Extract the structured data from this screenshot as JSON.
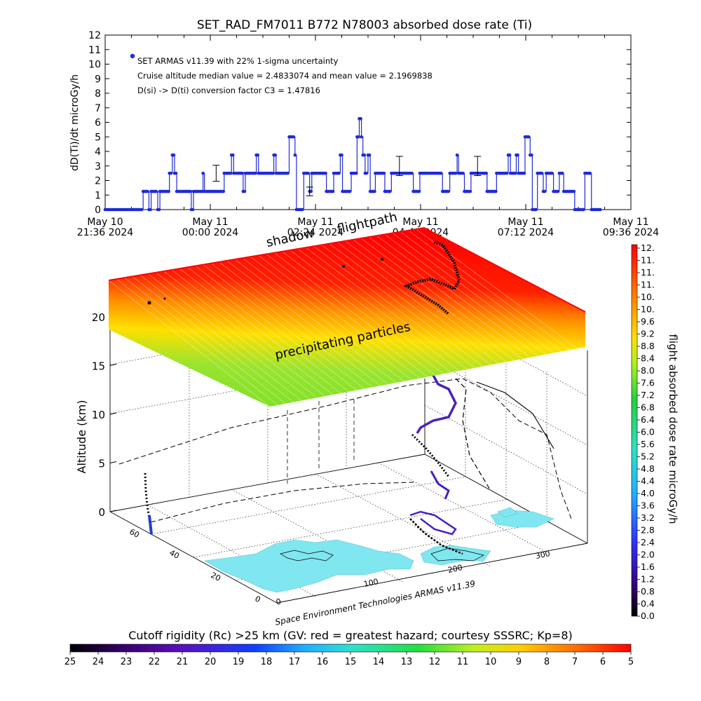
{
  "chart_data": [
    {
      "type": "scatter",
      "title": "SET_RAD_FM7011   B772 N78003 absorbed dose rate (Ti)",
      "ylabel": "dD(Ti)/dt microGy/h",
      "ylim": [
        0,
        12
      ],
      "yticks": [
        "0",
        "1",
        "2",
        "3",
        "4",
        "5",
        "6",
        "7",
        "8",
        "9",
        "10",
        "11",
        "12"
      ],
      "xlim": [
        0,
        720
      ],
      "xticks": [
        {
          "t": 0,
          "line1": "May 10",
          "line2": "21:36 2024"
        },
        {
          "t": 144,
          "line1": "May 11",
          "line2": "00:00 2024"
        },
        {
          "t": 288,
          "line1": "May 11",
          "line2": "02:24 2024"
        },
        {
          "t": 432,
          "line1": "May 11",
          "line2": "04:48 2024"
        },
        {
          "t": 576,
          "line1": "May 11",
          "line2": "07:12 2024"
        },
        {
          "t": 720,
          "line1": "May 11",
          "line2": "09:36 2024"
        }
      ],
      "legend": [
        "SET ARMAS v11.39 with 22% 1-sigma uncertainty",
        "Cruise altitude median value = 2.4833074 and mean value = 2.1969838",
        "D(si) -> D(ti) conversion factor C3 = 1.47816"
      ],
      "color": "#1f2bd6",
      "step_points": [
        [
          0,
          0
        ],
        [
          50,
          0
        ],
        [
          52,
          1.25
        ],
        [
          58,
          1.25
        ],
        [
          60,
          0
        ],
        [
          63,
          1.25
        ],
        [
          70,
          1.25
        ],
        [
          72,
          0
        ],
        [
          75,
          1.25
        ],
        [
          85,
          1.25
        ],
        [
          88,
          2.5
        ],
        [
          92,
          3.75
        ],
        [
          95,
          2.5
        ],
        [
          98,
          1.25
        ],
        [
          115,
          1.25
        ],
        [
          118,
          0
        ],
        [
          121,
          1.25
        ],
        [
          131,
          1.25
        ],
        [
          134,
          2.5
        ],
        [
          136,
          1.25
        ],
        [
          160,
          1.25
        ],
        [
          163,
          2.5
        ],
        [
          170,
          2.5
        ],
        [
          173,
          3.75
        ],
        [
          176,
          2.5
        ],
        [
          186,
          2.5
        ],
        [
          189,
          1.25
        ],
        [
          192,
          2.5
        ],
        [
          204,
          2.5
        ],
        [
          207,
          3.75
        ],
        [
          210,
          2.5
        ],
        [
          228,
          2.5
        ],
        [
          231,
          3.75
        ],
        [
          234,
          2.5
        ],
        [
          250,
          2.5
        ],
        [
          252,
          5
        ],
        [
          258,
          5
        ],
        [
          260,
          3.75
        ],
        [
          262,
          0
        ],
        [
          270,
          0
        ],
        [
          272,
          2.5
        ],
        [
          278,
          2.5
        ],
        [
          280,
          1.25
        ],
        [
          283,
          2.5
        ],
        [
          300,
          2.5
        ],
        [
          303,
          1.25
        ],
        [
          310,
          1.25
        ],
        [
          313,
          2.5
        ],
        [
          320,
          2.5
        ],
        [
          322,
          3.75
        ],
        [
          325,
          1.25
        ],
        [
          335,
          1.25
        ],
        [
          337,
          2.5
        ],
        [
          342,
          2.5
        ],
        [
          345,
          5
        ],
        [
          348,
          6.25
        ],
        [
          351,
          5
        ],
        [
          353,
          3.75
        ],
        [
          356,
          2.5
        ],
        [
          360,
          3.75
        ],
        [
          363,
          1.25
        ],
        [
          367,
          1.25
        ],
        [
          370,
          2.5
        ],
        [
          380,
          2.5
        ],
        [
          383,
          1.25
        ],
        [
          390,
          1.25
        ],
        [
          392,
          2.5
        ],
        [
          420,
          2.5
        ],
        [
          422,
          1.25
        ],
        [
          428,
          1.25
        ],
        [
          431,
          2.5
        ],
        [
          460,
          2.5
        ],
        [
          462,
          1.25
        ],
        [
          470,
          1.25
        ],
        [
          472,
          2.5
        ],
        [
          480,
          2.5
        ],
        [
          482,
          3.75
        ],
        [
          484,
          2.5
        ],
        [
          490,
          2.5
        ],
        [
          492,
          1.25
        ],
        [
          498,
          1.25
        ],
        [
          501,
          2.5
        ],
        [
          520,
          2.5
        ],
        [
          523,
          1.25
        ],
        [
          533,
          1.25
        ],
        [
          536,
          2.5
        ],
        [
          550,
          2.5
        ],
        [
          552,
          3.75
        ],
        [
          555,
          2.5
        ],
        [
          560,
          2.5
        ],
        [
          563,
          3.75
        ],
        [
          566,
          2.5
        ],
        [
          572,
          2.5
        ],
        [
          575,
          5
        ],
        [
          580,
          5
        ],
        [
          582,
          3.75
        ],
        [
          585,
          0
        ],
        [
          590,
          0
        ],
        [
          592,
          2.5
        ],
        [
          598,
          2.5
        ],
        [
          600,
          1.25
        ],
        [
          604,
          2.5
        ],
        [
          612,
          2.5
        ],
        [
          614,
          1.25
        ],
        [
          620,
          1.25
        ],
        [
          622,
          2.5
        ],
        [
          626,
          2.5
        ],
        [
          628,
          1.25
        ],
        [
          640,
          1.25
        ],
        [
          643,
          0
        ],
        [
          655,
          0
        ],
        [
          657,
          2.5
        ],
        [
          664,
          2.5
        ],
        [
          666,
          0
        ],
        [
          680,
          0
        ]
      ],
      "error_bars": [
        {
          "x": 152,
          "y": 2.5,
          "err": 0.55
        },
        {
          "x": 280,
          "y": 1.25,
          "err": 0.3
        },
        {
          "x": 403,
          "y": 3.0,
          "err": 0.66
        },
        {
          "x": 510,
          "y": 3.0,
          "err": 0.66
        }
      ]
    },
    {
      "type": "scatter",
      "title": "precipitating particles",
      "top_labels": [
        "shadow",
        "flightpath"
      ],
      "zlabel": "Altitude (km)",
      "zticks": [
        "0",
        "5",
        "10",
        "15",
        "20"
      ],
      "lat_ticks": [
        "60",
        "40",
        "20",
        "0"
      ],
      "lon_ticks": [
        "0",
        "100",
        "200",
        "300"
      ],
      "colorbar_title": "flight absorbed dose rate microGy/h",
      "colorbar_ticks": [
        "12.",
        "11.",
        "11.",
        "11.",
        "10.",
        "10.",
        "9.6",
        "9.2",
        "8.8",
        "8.4",
        "8.0",
        "7.6",
        "7.2",
        "6.8",
        "6.4",
        "6.0",
        "5.6",
        "5.2",
        "4.8",
        "4.4",
        "4.0",
        "3.6",
        "3.2",
        "2.8",
        "2.4",
        "2.0",
        "1.6",
        "1.2",
        "0.8",
        "0.4",
        "0.0"
      ],
      "credit": "Space Environment Technologies ARMAS v11.39",
      "colors": {
        "land": "#80e6f0",
        "hazard_high": "#ff0000",
        "hazard_low": "#7fe020"
      }
    },
    {
      "type": "heatmap",
      "title": "Cutoff rigidity (Rc) >25 km (GV: red = greatest hazard; courtesy SSSRC; Kp=8)",
      "ticks": [
        "25",
        "24",
        "23",
        "22",
        "21",
        "20",
        "19",
        "18",
        "17",
        "16",
        "15",
        "14",
        "13",
        "12",
        "11",
        "10",
        "9",
        "8",
        "7",
        "6",
        "5"
      ]
    }
  ]
}
